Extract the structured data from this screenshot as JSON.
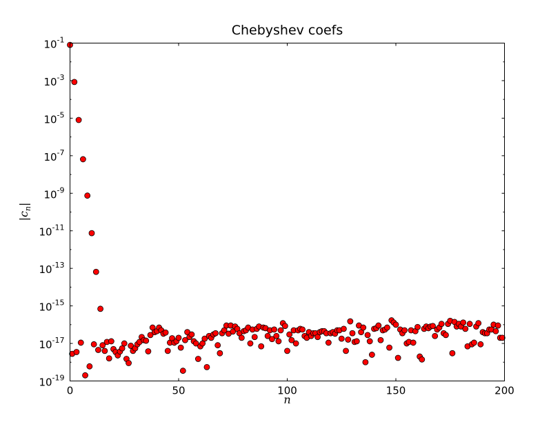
{
  "chart_data": {
    "type": "scatter",
    "title": "Chebyshev coefs",
    "xlabel": "n",
    "ylabel_parts": [
      "|c",
      "n",
      "|"
    ],
    "xlim": [
      0,
      200
    ],
    "ylim": [
      1e-19,
      0.1
    ],
    "yscale": "log",
    "grid": false,
    "x_ticks": [
      "0",
      "50",
      "100",
      "150",
      "200"
    ],
    "y_ticks": [
      {
        "base": "10",
        "exp": "-1"
      },
      {
        "base": "10",
        "exp": "-3"
      },
      {
        "base": "10",
        "exp": "-5"
      },
      {
        "base": "10",
        "exp": "-7"
      },
      {
        "base": "10",
        "exp": "-9"
      },
      {
        "base": "10",
        "exp": "-11"
      },
      {
        "base": "10",
        "exp": "-13"
      },
      {
        "base": "10",
        "exp": "-15"
      },
      {
        "base": "10",
        "exp": "-17"
      },
      {
        "base": "10",
        "exp": "-19"
      }
    ],
    "marker_color": "#ff0000",
    "marker_edge": "#000000",
    "points": [
      [
        0,
        0.08
      ],
      [
        1,
        2.8e-18
      ],
      [
        2,
        0.00085
      ],
      [
        3,
        3.5e-18
      ],
      [
        4,
        8e-06
      ],
      [
        5,
        1.1e-17
      ],
      [
        6,
        6.5e-08
      ],
      [
        7,
        2e-19
      ],
      [
        8,
        7.5e-10
      ],
      [
        9,
        6e-19
      ],
      [
        10,
        7.5e-12
      ],
      [
        11,
        9e-18
      ],
      [
        12,
        6.5e-14
      ],
      [
        13,
        4.5e-18
      ],
      [
        14,
        7e-16
      ],
      [
        15,
        8e-18
      ],
      [
        16,
        4e-18
      ],
      [
        17,
        1.2e-17
      ],
      [
        18,
        1.6e-18
      ],
      [
        19,
        1.3e-17
      ],
      [
        20,
        5e-18
      ],
      [
        21,
        3.5e-18
      ],
      [
        22,
        2.3e-18
      ],
      [
        23,
        3.7e-18
      ],
      [
        24,
        5.5e-18
      ],
      [
        25,
        1e-17
      ],
      [
        26,
        1.5e-18
      ],
      [
        27,
        9e-19
      ],
      [
        28,
        7.5e-18
      ],
      [
        29,
        4e-18
      ],
      [
        30,
        5.5e-18
      ],
      [
        31,
        9e-18
      ],
      [
        32,
        1.2e-17
      ],
      [
        33,
        2.2e-17
      ],
      [
        34,
        1.5e-17
      ],
      [
        35,
        1.4e-17
      ],
      [
        36,
        3.8e-18
      ],
      [
        37,
        2.8e-17
      ],
      [
        38,
        7e-17
      ],
      [
        39,
        4e-17
      ],
      [
        40,
        4.5e-17
      ],
      [
        41,
        7e-17
      ],
      [
        42,
        5e-17
      ],
      [
        43,
        3.3e-17
      ],
      [
        44,
        3.8e-17
      ],
      [
        45,
        4e-18
      ],
      [
        46,
        1.1e-17
      ],
      [
        47,
        1.9e-17
      ],
      [
        48,
        1.1e-17
      ],
      [
        49,
        1.3e-17
      ],
      [
        50,
        2e-17
      ],
      [
        51,
        6e-18
      ],
      [
        52,
        3.5e-19
      ],
      [
        53,
        1.5e-17
      ],
      [
        54,
        4e-17
      ],
      [
        55,
        2.2e-17
      ],
      [
        56,
        3e-17
      ],
      [
        57,
        1.3e-17
      ],
      [
        58,
        1e-17
      ],
      [
        59,
        1.5e-18
      ],
      [
        60,
        7e-18
      ],
      [
        61,
        1e-17
      ],
      [
        62,
        1.8e-17
      ],
      [
        63,
        5.5e-19
      ],
      [
        64,
        2.5e-17
      ],
      [
        65,
        2e-17
      ],
      [
        66,
        3e-17
      ],
      [
        67,
        3.5e-17
      ],
      [
        68,
        8e-18
      ],
      [
        69,
        3e-18
      ],
      [
        70,
        3.5e-17
      ],
      [
        71,
        5e-17
      ],
      [
        72,
        9e-17
      ],
      [
        73,
        3.3e-17
      ],
      [
        74,
        9e-17
      ],
      [
        75,
        4.3e-17
      ],
      [
        76,
        8e-17
      ],
      [
        77,
        6e-17
      ],
      [
        78,
        3.5e-17
      ],
      [
        79,
        2e-17
      ],
      [
        80,
        4.5e-17
      ],
      [
        81,
        5e-17
      ],
      [
        82,
        7e-17
      ],
      [
        83,
        1e-17
      ],
      [
        84,
        5.5e-17
      ],
      [
        85,
        2.2e-17
      ],
      [
        86,
        6e-17
      ],
      [
        87,
        8e-17
      ],
      [
        88,
        7e-18
      ],
      [
        89,
        7e-17
      ],
      [
        90,
        6.5e-17
      ],
      [
        91,
        2.5e-17
      ],
      [
        92,
        5e-17
      ],
      [
        93,
        1.7e-17
      ],
      [
        94,
        5.5e-17
      ],
      [
        95,
        2.5e-17
      ],
      [
        96,
        1.3e-17
      ],
      [
        97,
        5e-17
      ],
      [
        98,
        1.2e-16
      ],
      [
        99,
        8.5e-17
      ],
      [
        100,
        4e-18
      ],
      [
        101,
        3e-17
      ],
      [
        102,
        1.5e-17
      ],
      [
        103,
        5e-17
      ],
      [
        104,
        1e-17
      ],
      [
        105,
        5e-17
      ],
      [
        106,
        6e-17
      ],
      [
        107,
        5.5e-17
      ],
      [
        108,
        2.5e-17
      ],
      [
        109,
        2e-17
      ],
      [
        110,
        4e-17
      ],
      [
        111,
        2.5e-17
      ],
      [
        112,
        3.5e-17
      ],
      [
        113,
        3.5e-17
      ],
      [
        114,
        2.2e-17
      ],
      [
        115,
        4e-17
      ],
      [
        116,
        4.5e-17
      ],
      [
        117,
        4.5e-17
      ],
      [
        118,
        3.5e-17
      ],
      [
        119,
        1.1e-17
      ],
      [
        120,
        3.5e-17
      ],
      [
        121,
        4e-17
      ],
      [
        122,
        3.3e-17
      ],
      [
        123,
        5e-17
      ],
      [
        124,
        5e-17
      ],
      [
        125,
        1.8e-17
      ],
      [
        126,
        6e-17
      ],
      [
        127,
        4e-18
      ],
      [
        128,
        1.6e-17
      ],
      [
        129,
        1.5e-16
      ],
      [
        130,
        3.5e-17
      ],
      [
        131,
        1.2e-17
      ],
      [
        132,
        1.3e-17
      ],
      [
        133,
        9e-17
      ],
      [
        134,
        4e-17
      ],
      [
        135,
        7e-17
      ],
      [
        136,
        1e-18
      ],
      [
        137,
        2.8e-17
      ],
      [
        138,
        1.3e-17
      ],
      [
        139,
        2.5e-18
      ],
      [
        140,
        6e-17
      ],
      [
        141,
        6.5e-17
      ],
      [
        142,
        9e-17
      ],
      [
        143,
        1.5e-17
      ],
      [
        144,
        5e-17
      ],
      [
        145,
        5.5e-17
      ],
      [
        146,
        7e-17
      ],
      [
        147,
        6e-18
      ],
      [
        148,
        1.7e-16
      ],
      [
        149,
        1.3e-16
      ],
      [
        150,
        1e-16
      ],
      [
        151,
        1.7e-18
      ],
      [
        152,
        5.5e-17
      ],
      [
        153,
        3.5e-17
      ],
      [
        154,
        5e-17
      ],
      [
        155,
        1e-17
      ],
      [
        156,
        1.2e-17
      ],
      [
        157,
        5e-17
      ],
      [
        158,
        1.1e-17
      ],
      [
        159,
        4.5e-17
      ],
      [
        160,
        7.5e-17
      ],
      [
        161,
        2e-18
      ],
      [
        162,
        1.4e-18
      ],
      [
        163,
        6e-17
      ],
      [
        164,
        8e-17
      ],
      [
        165,
        6.5e-17
      ],
      [
        166,
        8e-17
      ],
      [
        167,
        8.5e-17
      ],
      [
        168,
        2.5e-17
      ],
      [
        169,
        5.5e-17
      ],
      [
        170,
        7e-17
      ],
      [
        171,
        1.1e-16
      ],
      [
        172,
        3.5e-17
      ],
      [
        173,
        2.8e-17
      ],
      [
        174,
        1.1e-16
      ],
      [
        175,
        1.6e-16
      ],
      [
        176,
        3e-18
      ],
      [
        177,
        1.4e-16
      ],
      [
        178,
        8e-17
      ],
      [
        179,
        1.1e-16
      ],
      [
        180,
        8e-17
      ],
      [
        181,
        1.3e-16
      ],
      [
        182,
        6e-17
      ],
      [
        183,
        7e-18
      ],
      [
        184,
        1.1e-16
      ],
      [
        185,
        9e-18
      ],
      [
        186,
        1.1e-17
      ],
      [
        187,
        8e-17
      ],
      [
        188,
        1.2e-16
      ],
      [
        189,
        9e-18
      ],
      [
        190,
        4e-17
      ],
      [
        191,
        3.5e-17
      ],
      [
        192,
        3.5e-17
      ],
      [
        193,
        5.5e-17
      ],
      [
        194,
        5.5e-17
      ],
      [
        195,
        1e-16
      ],
      [
        196,
        4.5e-17
      ],
      [
        197,
        9e-17
      ],
      [
        198,
        2e-17
      ],
      [
        199,
        2e-17
      ]
    ]
  }
}
